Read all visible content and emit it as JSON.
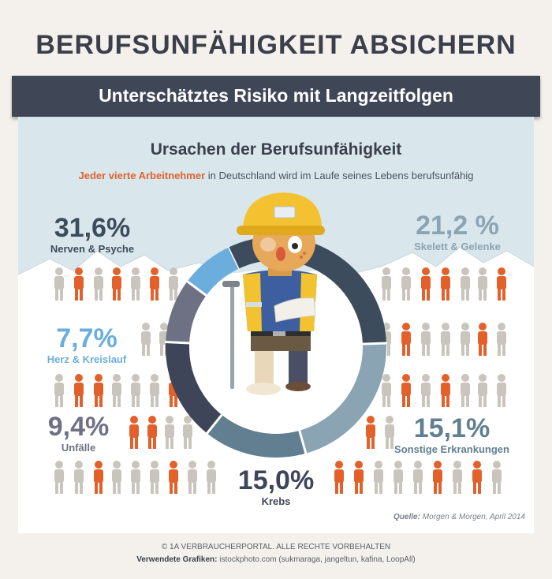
{
  "header": {
    "title": "BERUFSUNFÄHIGKEIT ABSICHERN",
    "ribbon": "Unterschätztes Risiko mit Langzeitfolgen"
  },
  "chart": {
    "subtitle": "Ursachen der Berufsunfähigkeit",
    "tagline_highlight": "Jeder vierte Arbeitnehmer",
    "tagline_rest": " in Deutschland wird im Laufe seines Lebens berufsunfähig"
  },
  "chart_data": {
    "type": "pie",
    "title": "Ursachen der Berufsunfähigkeit",
    "categories": [
      "Nerven & Psyche",
      "Skelett  & Gelenke",
      "Sonstige Erkrankungen",
      "Krebs",
      "Unfälle",
      "Herz & Kreislauf"
    ],
    "values": [
      31.6,
      21.2,
      15.1,
      15.0,
      9.4,
      7.7
    ],
    "labels": [
      "31,6%",
      "21,2 %",
      "15,1%",
      "15,0%",
      "9,4%",
      "7,7%"
    ],
    "colors": [
      "#3c4c5c",
      "#8aa4b4",
      "#617f91",
      "#3f4559",
      "#6d7183",
      "#6baede"
    ],
    "label_colors": [
      "#3c4c5c",
      "#8aa4b4",
      "#617f91",
      "#3f4559",
      "#6d7183",
      "#6baede"
    ]
  },
  "source": {
    "label": "Quelle:",
    "text": " Morgen & Morgen, April 2014"
  },
  "footer": {
    "copyright": "© 1A VERBRAUCHERPORTAL. ALLE RECHTE VORBEHALTEN",
    "graphics_label": "Verwendete Grafiken:",
    "graphics_text": " istockphoto.com (sukmaraga, jangeltun, kafina, LoopAll)"
  },
  "illustration": {
    "icon": "construction-worker-illustration",
    "person_icon": "person-icon",
    "person_colors": [
      "#c9c5bd",
      "#e2612b"
    ]
  }
}
